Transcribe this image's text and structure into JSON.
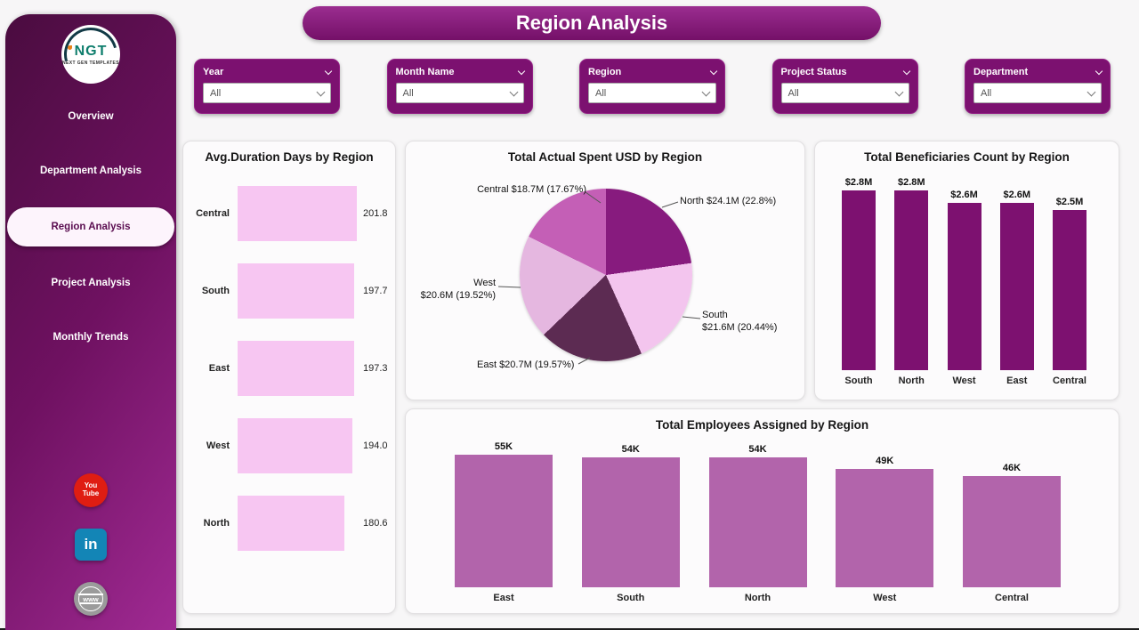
{
  "header": {
    "title": "Region Analysis"
  },
  "sidebar": {
    "logo_text": "NGT",
    "logo_subtext": "NEXT GEN TEMPLATES",
    "items": [
      {
        "label": "Overview",
        "active": false
      },
      {
        "label": "Department Analysis",
        "active": false
      },
      {
        "label": "Region Analysis",
        "active": true
      },
      {
        "label": "Project Analysis",
        "active": false
      },
      {
        "label": "Monthly Trends",
        "active": false
      }
    ],
    "social": [
      {
        "name": "youtube",
        "line1": "You",
        "line2": "Tube",
        "color": "#df1d12"
      },
      {
        "name": "linkedin",
        "label": "in",
        "color": "#1385b6"
      },
      {
        "name": "website",
        "label": "www",
        "color": "#9b9b9b"
      }
    ]
  },
  "filters": [
    {
      "label": "Year",
      "value": "All"
    },
    {
      "label": "Month Name",
      "value": "All"
    },
    {
      "label": "Region",
      "value": "All"
    },
    {
      "label": "Project Status",
      "value": "All"
    },
    {
      "label": "Department",
      "value": "All"
    }
  ],
  "theme": {
    "sidebar_gradient": [
      "#4a0c3f",
      "#6f1161",
      "#a02a93"
    ],
    "filter_bg": "#7c1170",
    "banner_bg": "#8a1b7e"
  },
  "chart_data": [
    {
      "type": "bar",
      "orientation": "horizontal",
      "title": "Avg.Duration Days by Region",
      "categories": [
        "Central",
        "South",
        "East",
        "West",
        "North"
      ],
      "values": [
        201.8,
        197.7,
        197.3,
        194.0,
        180.6
      ],
      "value_labels": [
        "201.8",
        "197.7",
        "197.3",
        "194.0",
        "180.6"
      ],
      "bar_color": "#f7c6f2",
      "xlim": [
        0,
        201.8
      ]
    },
    {
      "type": "pie",
      "title": "Total Actual Spent USD by Region",
      "slices": [
        {
          "label": "North",
          "value_musd": 24.1,
          "pct": 22.8,
          "color": "#871b7e",
          "callout1": "North $24.1M (22.8%)",
          "callout2": ""
        },
        {
          "label": "South",
          "value_musd": 21.6,
          "pct": 20.44,
          "color": "#f3c5ee",
          "callout1": "South",
          "callout2": "$21.6M (20.44%)"
        },
        {
          "label": "East",
          "value_musd": 20.7,
          "pct": 19.57,
          "color": "#5c2b52",
          "callout1": "East $20.7M (19.57%)",
          "callout2": ""
        },
        {
          "label": "West",
          "value_musd": 20.6,
          "pct": 19.52,
          "color": "#e5b7e0",
          "callout1": "West",
          "callout2": "$20.6M (19.52%)"
        },
        {
          "label": "Central",
          "value_musd": 18.7,
          "pct": 17.67,
          "color": "#c45fb6",
          "callout1": "Central $18.7M (17.67%)",
          "callout2": ""
        }
      ]
    },
    {
      "type": "bar",
      "orientation": "vertical",
      "title": "Total Beneficiaries Count by Region",
      "categories": [
        "South",
        "North",
        "West",
        "East",
        "Central"
      ],
      "values": [
        2.8,
        2.8,
        2.6,
        2.6,
        2.5
      ],
      "value_labels": [
        "$2.8M",
        "$2.8M",
        "$2.6M",
        "$2.6M",
        "$2.5M"
      ],
      "bar_color": "#7d1170",
      "ylim": [
        0,
        2.8
      ]
    },
    {
      "type": "bar",
      "orientation": "vertical",
      "title": "Total Employees Assigned by Region",
      "categories": [
        "East",
        "South",
        "North",
        "West",
        "Central"
      ],
      "values": [
        55,
        54,
        54,
        49,
        46
      ],
      "value_labels": [
        "55K",
        "54K",
        "54K",
        "49K",
        "46K"
      ],
      "bar_color": "#b264ab",
      "ylim": [
        0,
        55
      ]
    }
  ]
}
